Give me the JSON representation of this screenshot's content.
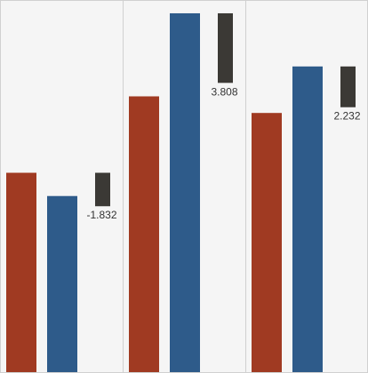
{
  "chart_data": {
    "type": "bar",
    "panels": [
      {
        "bars": [
          {
            "color": "#a03a22",
            "value": 6.0
          },
          {
            "color": "#2e5b8a",
            "value": 5.3
          }
        ],
        "diff": -1.832,
        "diff_label": "-1.832"
      },
      {
        "bars": [
          {
            "color": "#a03a22",
            "value": 8.3
          },
          {
            "color": "#2e5b8a",
            "value": 10.8
          }
        ],
        "diff": 3.808,
        "diff_label": "3.808"
      },
      {
        "bars": [
          {
            "color": "#a03a22",
            "value": 7.8
          },
          {
            "color": "#2e5b8a",
            "value": 9.2
          }
        ],
        "diff": 2.232,
        "diff_label": "2.232"
      }
    ],
    "ylim": [
      0,
      11.2
    ],
    "colors": {
      "panel_bg": "#f5f5f5",
      "diff_bar": "#3b3935",
      "divider": "#d0d0d0"
    }
  }
}
